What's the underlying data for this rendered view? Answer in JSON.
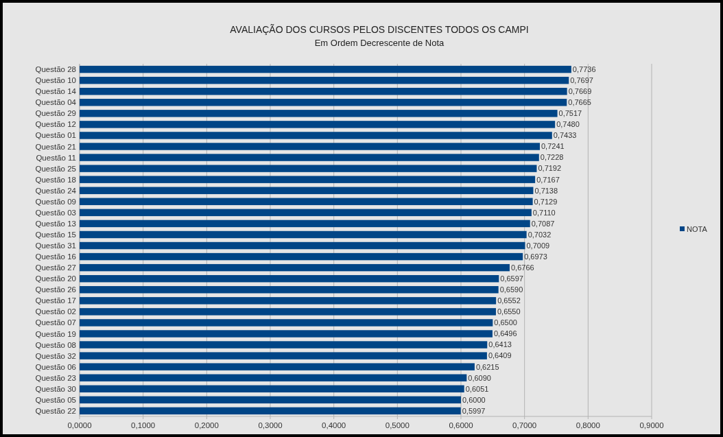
{
  "chart_data": {
    "type": "bar",
    "orientation": "horizontal",
    "title": "AVALIAÇÃO DOS CURSOS PELOS DISCENTES TODOS OS CAMPI",
    "subtitle": "Em Ordem Decrescente de Nota",
    "categories": [
      "Questão 28",
      "Questão 10",
      "Questão 14",
      "Questão 04",
      "Questão 29",
      "Questão 12",
      "Questão 01",
      "Questão 21",
      "Questão 11",
      "Questão 25",
      "Questão 18",
      "Questão 24",
      "Questão 09",
      "Questão 03",
      "Questão 13",
      "Questão 15",
      "Questão 31",
      "Questão 16",
      "Questão 27",
      "Questão 20",
      "Questão 26",
      "Questão 17",
      "Questão 02",
      "Questão 07",
      "Questão 19",
      "Questão 08",
      "Questão 32",
      "Questão 06",
      "Questão 23",
      "Questão 30",
      "Questão 05",
      "Questão 22"
    ],
    "series": [
      {
        "name": "NOTA",
        "color": "#004586",
        "values": [
          0.7736,
          0.7697,
          0.7669,
          0.7665,
          0.7517,
          0.748,
          0.7433,
          0.7241,
          0.7228,
          0.7192,
          0.7167,
          0.7138,
          0.7129,
          0.711,
          0.7087,
          0.7032,
          0.7009,
          0.6973,
          0.6766,
          0.6597,
          0.659,
          0.6552,
          0.655,
          0.65,
          0.6496,
          0.6413,
          0.6409,
          0.6215,
          0.609,
          0.6051,
          0.6,
          0.5997
        ],
        "value_labels": [
          "0,7736",
          "0,7697",
          "0,7669",
          "0,7665",
          "0,7517",
          "0,7480",
          "0,7433",
          "0,7241",
          "0,7228",
          "0,7192",
          "0,7167",
          "0,7138",
          "0,7129",
          "0,7110",
          "0,7087",
          "0,7032",
          "0,7009",
          "0,6973",
          "0,6766",
          "0,6597",
          "0,6590",
          "0,6552",
          "0,6550",
          "0,6500",
          "0,6496",
          "0,6413",
          "0,6409",
          "0,6215",
          "0,6090",
          "0,6051",
          "0,6000",
          "0,5997"
        ]
      }
    ],
    "xlim": [
      0,
      0.9
    ],
    "xticks": [
      {
        "value": 0,
        "label": "0,0000"
      },
      {
        "value": 0.1,
        "label": "0,1000"
      },
      {
        "value": 0.2,
        "label": "0,2000"
      },
      {
        "value": 0.3,
        "label": "0,3000"
      },
      {
        "value": 0.4,
        "label": "0,4000"
      },
      {
        "value": 0.5,
        "label": "0,5000"
      },
      {
        "value": 0.6,
        "label": "0,6000"
      },
      {
        "value": 0.7,
        "label": "0,7000"
      },
      {
        "value": 0.8,
        "label": "0,8000"
      },
      {
        "value": 0.9,
        "label": "0,9000"
      }
    ],
    "grid": "x",
    "legend": "right"
  }
}
